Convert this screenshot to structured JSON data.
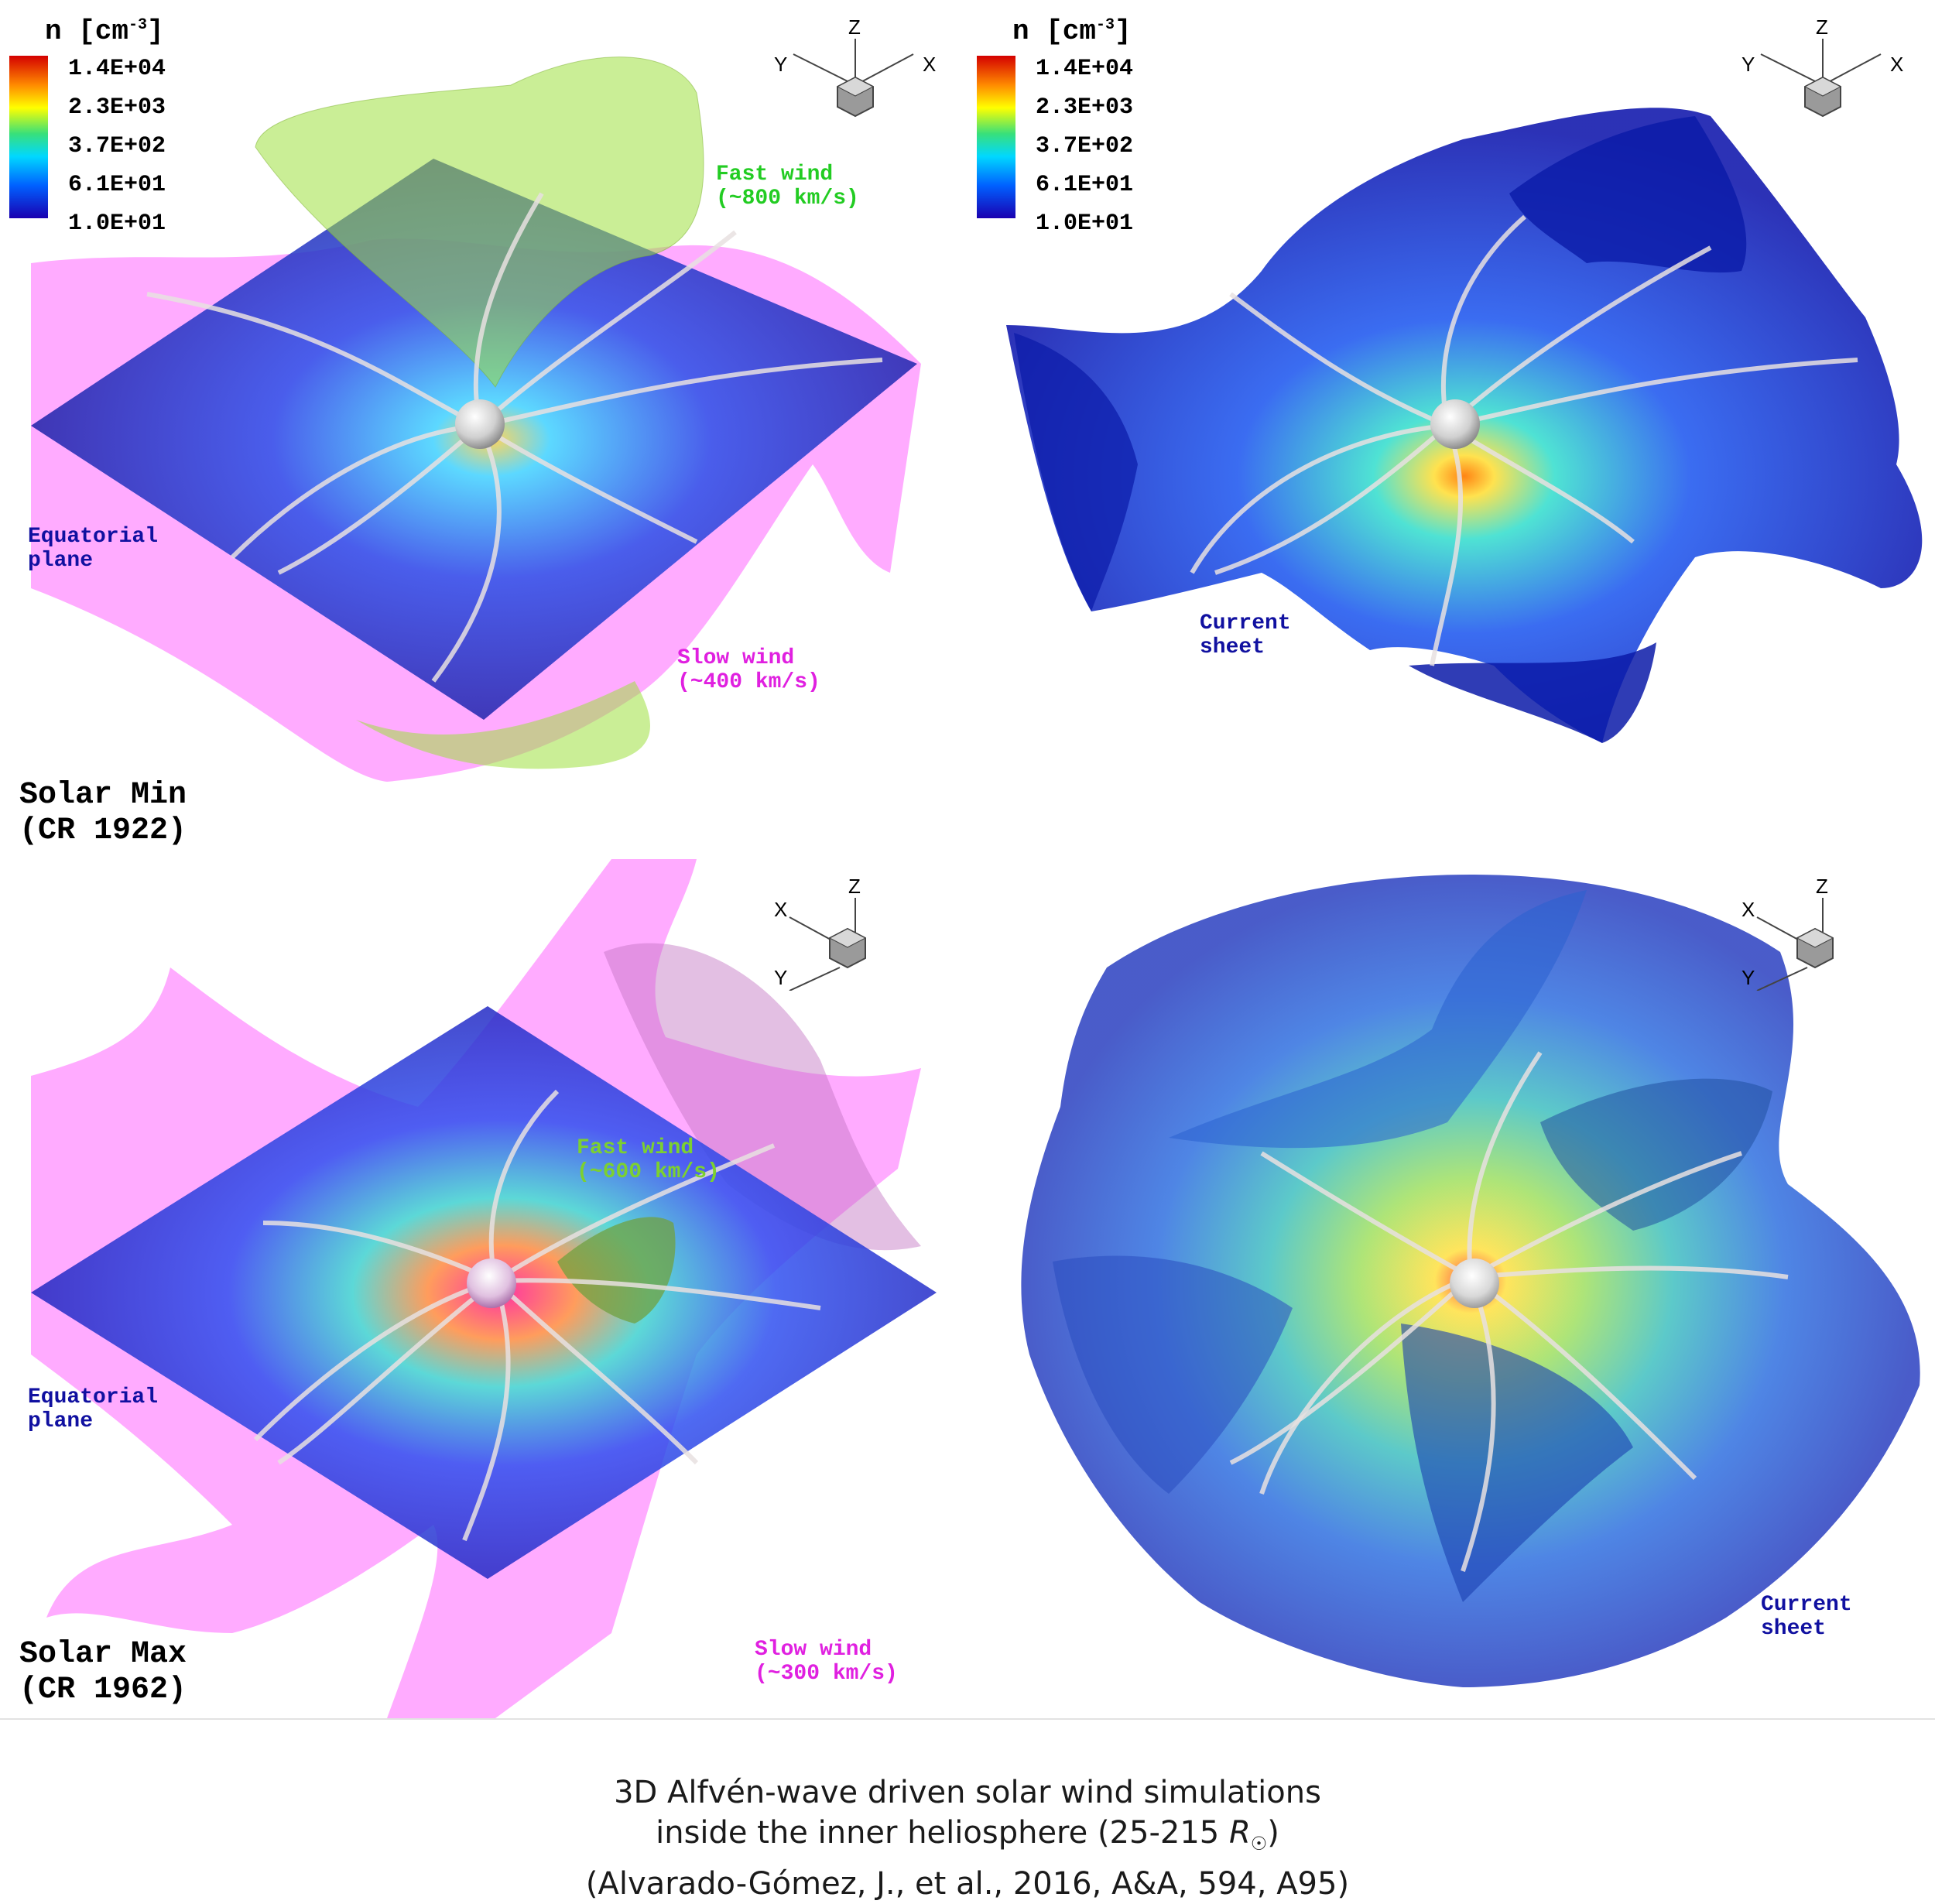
{
  "colorbar": {
    "title_main": "n [cm",
    "title_exp": "-3",
    "title_close": "]",
    "labels": [
      "1.4E+04",
      "2.3E+03",
      "3.7E+02",
      "6.1E+01",
      "1.0E+01"
    ]
  },
  "axes_top": {
    "z": "Z",
    "y": "Y",
    "x": "X"
  },
  "axes_bottom": {
    "z": "Z",
    "x": "X",
    "y": "Y"
  },
  "panels": {
    "top_left": {
      "fast_wind": "Fast wind\n(~800 km/s)",
      "slow_wind": "Slow wind\n(~400 km/s)",
      "equatorial": "Equatorial\nplane",
      "phase": "Solar Min\n(CR 1922)"
    },
    "top_right": {
      "current_sheet": "Current\nsheet"
    },
    "bottom_left": {
      "fast_wind": "Fast wind\n(~600 km/s)",
      "slow_wind": "Slow wind\n(~300 km/s)",
      "equatorial": "Equatorial\nplane",
      "phase": "Solar Max\n(CR 1962)"
    },
    "bottom_right": {
      "current_sheet": "Current\nsheet"
    }
  },
  "colors": {
    "fast_wind": "#22cc22",
    "slow_wind": "#e020e0",
    "equatorial": "#1010a0",
    "current_sheet": "#1010a0"
  },
  "caption": {
    "line1": "3D Alfvén-wave driven solar wind simulations",
    "line2_prefix": "inside the inner heliosphere (25-215 ",
    "line2_r": "R",
    "line2_sun": "☉",
    "line2_suffix": ")",
    "line3": "(Alvarado-Gómez, J., et al., 2016, A&A, 594, A95)"
  }
}
